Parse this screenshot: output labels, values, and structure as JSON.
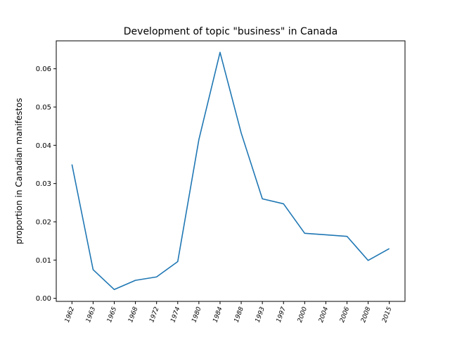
{
  "chart_data": {
    "type": "line",
    "title": "Development of topic \"business\" in Canada",
    "xlabel": "",
    "ylabel": "proportion in Canadian manifestos",
    "categories": [
      "1962",
      "1963",
      "1965",
      "1968",
      "1972",
      "1974",
      "1980",
      "1984",
      "1988",
      "1993",
      "1997",
      "2000",
      "2004",
      "2006",
      "2008",
      "2015"
    ],
    "series": [
      {
        "color": "#1f77b4",
        "values": [
          0.035,
          0.0075,
          0.0023,
          0.0047,
          0.0056,
          0.0096,
          0.0415,
          0.0643,
          0.0432,
          0.026,
          0.0247,
          0.017,
          0.0166,
          0.0162,
          0.0099,
          0.013
        ]
      }
    ],
    "yticks": [
      0.0,
      0.01,
      0.02,
      0.03,
      0.04,
      0.05,
      0.06
    ],
    "ytick_labels": [
      "0.00",
      "0.01",
      "0.02",
      "0.03",
      "0.04",
      "0.05",
      "0.06"
    ],
    "ylim": [
      -0.0008,
      0.0673
    ],
    "grid": false,
    "xtick_rotation": 70
  }
}
